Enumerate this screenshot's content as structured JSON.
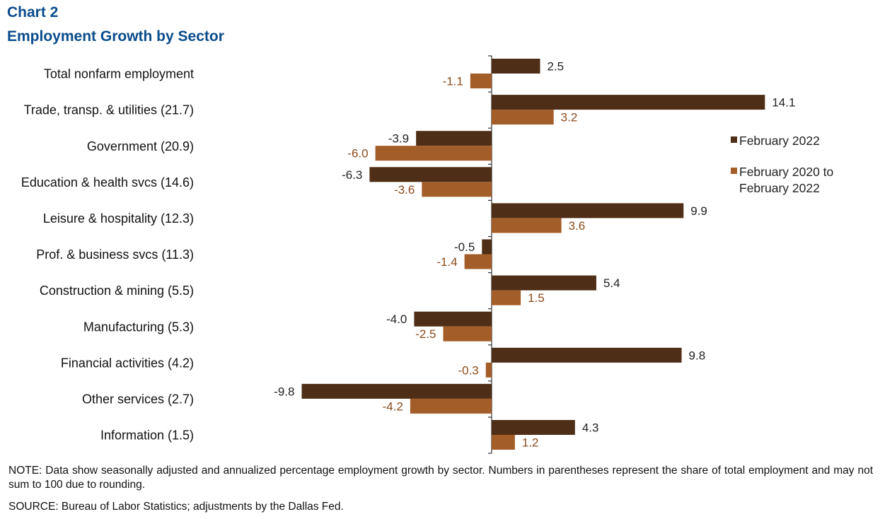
{
  "title": "Chart 2",
  "subtitle": "Employment  Growth by Sector",
  "note": "NOTE: Data show seasonally adjusted and annualized percentage employment growth by sector. Numbers in parentheses represent the share of total employment and may not sum to 100 due to rounding.",
  "source": "SOURCE: Bureau of Labor Statistics; adjustments by the Dallas Fed.",
  "colors": {
    "series1": "#4e2e16",
    "series2": "#a35d29",
    "label1": "#222222",
    "label2": "#8a4a1a"
  },
  "chart_data": {
    "type": "bar",
    "orientation": "horizontal",
    "categories": [
      "Total nonfarm employment",
      "Trade, transp. & utilities (21.7)",
      "Government (20.9)",
      "Education & health svcs (14.6)",
      "Leisure & hospitality (12.3)",
      "Prof. & business svcs (11.3)",
      "Construction & mining (5.5)",
      "Manufacturing (5.3)",
      "Financial activities (4.2)",
      "Other services (2.7)",
      "Information (1.5)"
    ],
    "series": [
      {
        "name": "February 2022",
        "values": [
          2.5,
          14.1,
          -3.9,
          -6.3,
          9.9,
          -0.5,
          5.4,
          -4.0,
          9.8,
          -9.8,
          4.3
        ]
      },
      {
        "name": "February 2020 to February 2022",
        "values": [
          -1.1,
          3.2,
          -6.0,
          -3.6,
          3.6,
          -1.4,
          1.5,
          -2.5,
          -0.3,
          -4.2,
          1.2
        ]
      }
    ],
    "legend_lines": [
      [
        "February 2022"
      ],
      [
        "February 2020 to",
        "February 2022"
      ]
    ],
    "legend_position": "right",
    "xlim": [
      -10,
      15
    ],
    "grid": false
  }
}
